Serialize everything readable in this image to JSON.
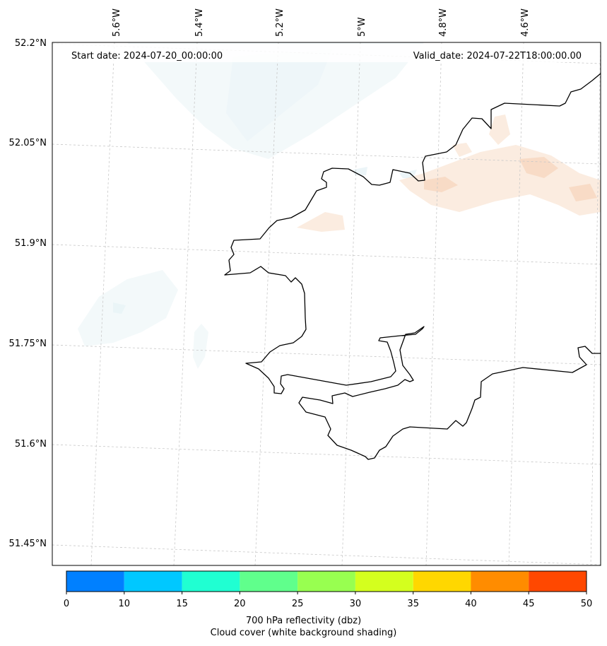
{
  "header": {
    "start_date": "Start date: 2024-07-20_00:00:00",
    "valid_date": "Valid_date: 2024-07-22T18:00:00.00"
  },
  "axes": {
    "lon_labels": [
      "5.6°W",
      "5.4°W",
      "5.2°W",
      "5°W",
      "4.8°W",
      "4.6°W"
    ],
    "lat_labels": [
      "52.2°N",
      "52.05°N",
      "51.9°N",
      "51.75°N",
      "51.6°N",
      "51.45°N"
    ]
  },
  "colorbar": {
    "ticks": [
      "0",
      "10",
      "15",
      "20",
      "25",
      "30",
      "35",
      "40",
      "45",
      "50"
    ],
    "colors": [
      "#0080ff",
      "#00c8ff",
      "#20ffd2",
      "#60ff8c",
      "#98ff50",
      "#d4ff1e",
      "#ffd700",
      "#ff8c00",
      "#ff4800"
    ],
    "label_line1": "700 hPa reflectivity (dbz)",
    "label_line2": "Cloud cover (white background shading)"
  }
}
